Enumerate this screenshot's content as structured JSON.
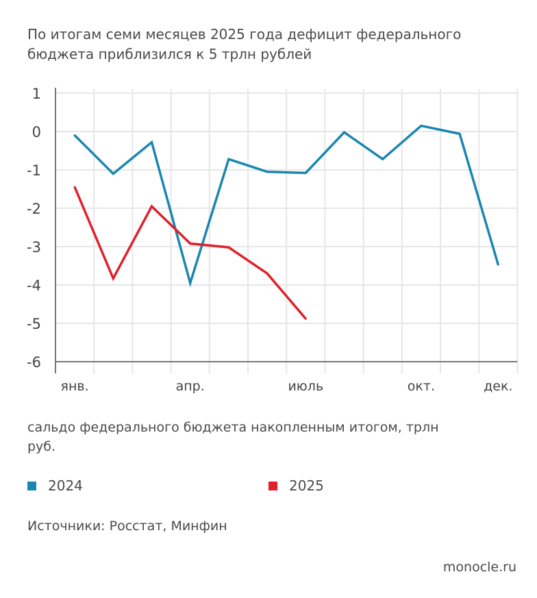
{
  "chart_data": {
    "type": "line",
    "title": "По итогам семи месяцев 2025 года дефицит федерального бюджета приблизился к 5 трлн рублей",
    "subtitle": "сальдо федерального бюджета накопленным итогом, трлн руб.",
    "x_tick_labels": [
      "янв.",
      "",
      "",
      "апр.",
      "",
      "",
      "июль",
      "",
      "",
      "окт.",
      "",
      "дек."
    ],
    "y_ticks": [
      1,
      0,
      -1,
      -2,
      -3,
      -4,
      -5,
      -6
    ],
    "ylim": [
      -6,
      1
    ],
    "grid": true,
    "legend_position": "bottom",
    "series": [
      {
        "name": "2024",
        "color": "#1a86b0",
        "values": [
          -0.1,
          -1.1,
          -0.28,
          -3.95,
          -0.72,
          -1.05,
          -1.08,
          -0.02,
          -0.72,
          0.15,
          -0.06,
          -3.47
        ]
      },
      {
        "name": "2025",
        "color": "#e0202a",
        "values": [
          -1.45,
          -3.83,
          -1.95,
          -2.92,
          -3.02,
          -3.7,
          -4.88
        ]
      }
    ]
  },
  "source": "Источники: Росстат, Минфин",
  "brand": "monocle.ru"
}
